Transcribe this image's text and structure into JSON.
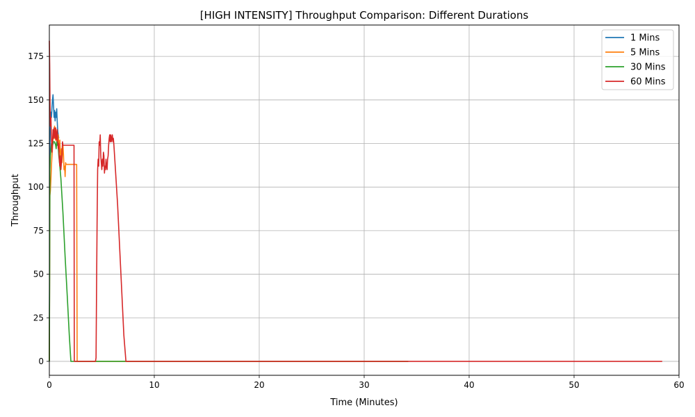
{
  "chart_data": {
    "type": "line",
    "title": "[HIGH INTENSITY] Throughput Comparison: Different Durations",
    "xlabel": "Time (Minutes)",
    "ylabel": "Throughput",
    "xlim": [
      0,
      60
    ],
    "ylim": [
      -8,
      193
    ],
    "xticks": [
      0,
      10,
      20,
      30,
      40,
      50,
      60
    ],
    "yticks": [
      0,
      25,
      50,
      75,
      100,
      125,
      150,
      175
    ],
    "grid": true,
    "legend_position": "top-right",
    "series": [
      {
        "name": "1 Mins",
        "color": "#1f77b4",
        "points": [
          [
            0,
            0
          ],
          [
            0.05,
            120
          ],
          [
            0.1,
            138
          ],
          [
            0.15,
            143
          ],
          [
            0.2,
            140
          ],
          [
            0.25,
            146
          ],
          [
            0.3,
            150
          ],
          [
            0.35,
            153
          ],
          [
            0.4,
            147
          ],
          [
            0.45,
            140
          ],
          [
            0.5,
            144
          ],
          [
            0.55,
            138
          ],
          [
            0.6,
            143
          ],
          [
            0.65,
            140
          ],
          [
            0.7,
            145
          ],
          [
            0.75,
            138
          ],
          [
            0.8,
            132
          ],
          [
            0.9,
            128
          ]
        ]
      },
      {
        "name": "5 Mins",
        "color": "#ff7f0e",
        "points": [
          [
            0,
            0
          ],
          [
            0.05,
            95
          ],
          [
            0.1,
            98
          ],
          [
            0.15,
            105
          ],
          [
            0.2,
            112
          ],
          [
            0.25,
            118
          ],
          [
            0.3,
            122
          ],
          [
            0.35,
            127
          ],
          [
            0.4,
            132
          ],
          [
            0.45,
            128
          ],
          [
            0.5,
            135
          ],
          [
            0.55,
            130
          ],
          [
            0.6,
            127
          ],
          [
            0.65,
            132
          ],
          [
            0.7,
            126
          ],
          [
            0.75,
            128
          ],
          [
            0.8,
            125
          ],
          [
            0.85,
            130
          ],
          [
            0.9,
            124
          ],
          [
            0.95,
            120
          ],
          [
            1.0,
            127
          ],
          [
            1.05,
            118
          ],
          [
            1.1,
            116
          ],
          [
            1.15,
            122
          ],
          [
            1.2,
            114
          ],
          [
            1.25,
            120
          ],
          [
            1.3,
            124
          ],
          [
            1.35,
            118
          ],
          [
            1.4,
            110
          ],
          [
            1.45,
            112
          ],
          [
            1.5,
            106
          ],
          [
            1.55,
            114
          ],
          [
            1.6,
            113
          ],
          [
            2.5,
            113
          ],
          [
            2.55,
            113
          ],
          [
            2.6,
            113
          ],
          [
            2.65,
            0
          ],
          [
            34.2,
            0
          ]
        ]
      },
      {
        "name": "30 Mins",
        "color": "#2ca02c",
        "points": [
          [
            0,
            0
          ],
          [
            0.05,
            110
          ],
          [
            0.1,
            118
          ],
          [
            0.15,
            122
          ],
          [
            0.2,
            125
          ],
          [
            0.3,
            124
          ],
          [
            0.4,
            126
          ],
          [
            0.5,
            126
          ],
          [
            0.6,
            124
          ],
          [
            0.65,
            122
          ],
          [
            0.7,
            126
          ],
          [
            0.75,
            124
          ],
          [
            0.8,
            125
          ],
          [
            0.85,
            123
          ],
          [
            0.9,
            118
          ],
          [
            1.0,
            112
          ],
          [
            1.1,
            105
          ],
          [
            1.3,
            85
          ],
          [
            1.5,
            60
          ],
          [
            1.7,
            38
          ],
          [
            1.9,
            15
          ],
          [
            2.05,
            0
          ],
          [
            34.2,
            0
          ]
        ]
      },
      {
        "name": "60 Mins",
        "color": "#d62728",
        "points": [
          [
            0,
            184
          ],
          [
            0.03,
            170
          ],
          [
            0.06,
            150
          ],
          [
            0.1,
            135
          ],
          [
            0.15,
            140
          ],
          [
            0.2,
            128
          ],
          [
            0.25,
            120
          ],
          [
            0.3,
            126
          ],
          [
            0.35,
            133
          ],
          [
            0.4,
            128
          ],
          [
            0.45,
            134
          ],
          [
            0.5,
            130
          ],
          [
            0.55,
            128
          ],
          [
            0.6,
            134
          ],
          [
            0.65,
            127
          ],
          [
            0.7,
            129
          ],
          [
            0.75,
            133
          ],
          [
            0.8,
            126
          ],
          [
            0.85,
            122
          ],
          [
            0.9,
            125
          ],
          [
            0.95,
            116
          ],
          [
            1.0,
            112
          ],
          [
            1.05,
            118
          ],
          [
            1.1,
            110
          ],
          [
            1.15,
            114
          ],
          [
            1.2,
            118
          ],
          [
            1.25,
            126
          ],
          [
            1.3,
            124
          ],
          [
            2.35,
            124
          ],
          [
            2.38,
            0
          ],
          [
            4.4,
            0
          ],
          [
            4.45,
            2
          ],
          [
            4.5,
            40
          ],
          [
            4.55,
            80
          ],
          [
            4.6,
            110
          ],
          [
            4.65,
            116
          ],
          [
            4.7,
            112
          ],
          [
            4.75,
            126
          ],
          [
            4.8,
            124
          ],
          [
            4.85,
            130
          ],
          [
            4.9,
            118
          ],
          [
            4.95,
            114
          ],
          [
            5.0,
            110
          ],
          [
            5.05,
            116
          ],
          [
            5.1,
            112
          ],
          [
            5.15,
            120
          ],
          [
            5.2,
            118
          ],
          [
            5.25,
            108
          ],
          [
            5.3,
            112
          ],
          [
            5.35,
            110
          ],
          [
            5.4,
            116
          ],
          [
            5.45,
            112
          ],
          [
            5.5,
            110
          ],
          [
            5.55,
            116
          ],
          [
            5.6,
            118
          ],
          [
            5.65,
            124
          ],
          [
            5.7,
            128
          ],
          [
            5.75,
            130
          ],
          [
            5.8,
            126
          ],
          [
            5.85,
            130
          ],
          [
            5.9,
            126
          ],
          [
            5.95,
            128
          ],
          [
            6.0,
            130
          ],
          [
            6.05,
            126
          ],
          [
            6.1,
            128
          ],
          [
            6.15,
            124
          ],
          [
            6.3,
            110
          ],
          [
            6.5,
            90
          ],
          [
            6.7,
            65
          ],
          [
            6.9,
            40
          ],
          [
            7.1,
            15
          ],
          [
            7.3,
            0
          ],
          [
            58.4,
            0
          ]
        ]
      }
    ]
  }
}
